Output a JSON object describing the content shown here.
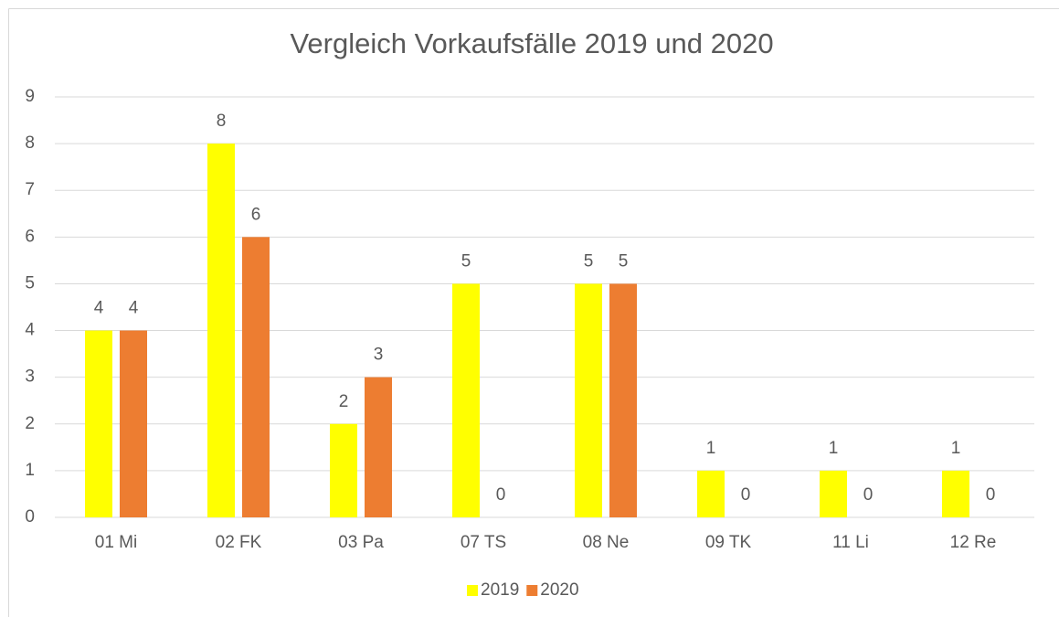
{
  "chart_data": {
    "type": "bar",
    "title": "Vergleich Vorkaufsfälle 2019 und 2020",
    "categories": [
      "01 Mi",
      "02 FK",
      "03 Pa",
      "07 TS",
      "08 Ne",
      "09 TK",
      "11 Li",
      "12 Re"
    ],
    "series": [
      {
        "name": "2019",
        "color": "#ffff00",
        "values": [
          4,
          8,
          2,
          5,
          5,
          1,
          1,
          1
        ]
      },
      {
        "name": "2020",
        "color": "#ed7d31",
        "values": [
          4,
          6,
          3,
          0,
          5,
          0,
          0,
          0
        ]
      }
    ],
    "ylim": [
      0,
      9
    ],
    "yticks": [
      0,
      1,
      2,
      3,
      4,
      5,
      6,
      7,
      8,
      9
    ],
    "grid": true,
    "legend": "bottom"
  }
}
